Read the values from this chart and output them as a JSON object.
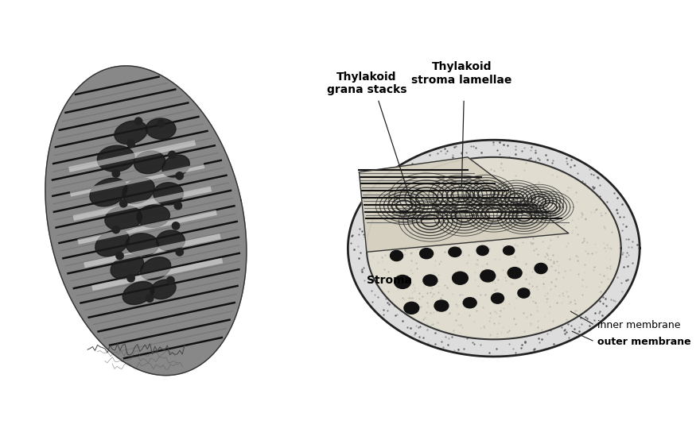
{
  "bg_color": "#ffffff",
  "labels": {
    "thylakoid_grana": "Thylakoid\ngrana stacks",
    "thylakoid_stroma": "Thylakoid\nstroma lamellae",
    "stroma": "Stroma",
    "inner_membrane": "inner membrane",
    "outer_membrane": "outer membrane"
  }
}
